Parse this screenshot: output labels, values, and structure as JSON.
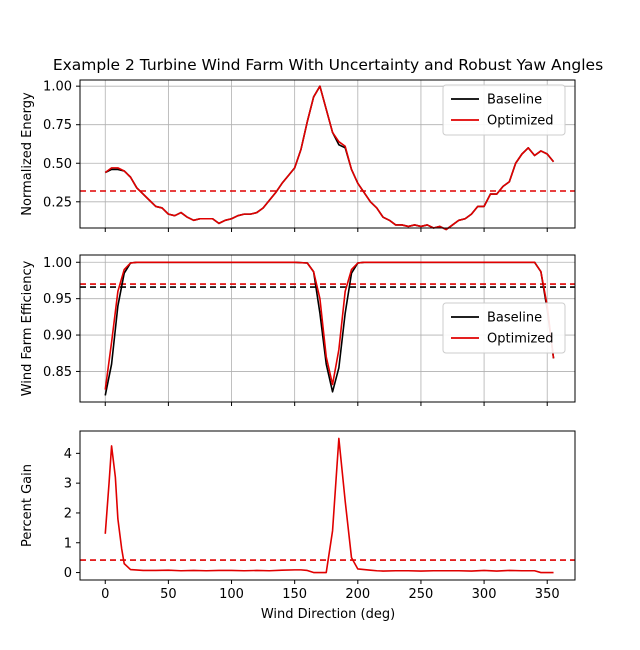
{
  "chart_data": {
    "type": "line",
    "title": "Example 2 Turbine Wind Farm With Uncertainty and Robust Yaw Angles",
    "xlabel": "Wind Direction (deg)",
    "xlim": [
      -20,
      372
    ],
    "xticks": [
      "0",
      "50",
      "100",
      "150",
      "200",
      "250",
      "300",
      "350"
    ],
    "colors": {
      "baseline": "#000000",
      "optimized": "#e00000",
      "grid": "#b0b0b0"
    },
    "panels": [
      {
        "ylabel": "Normalized Energy",
        "ylim": [
          0.08,
          1.04
        ],
        "yticks": [
          "0.25",
          "0.50",
          "0.75",
          "1.00"
        ],
        "ytick_values": [
          0.25,
          0.5,
          0.75,
          1.0
        ],
        "grid": true,
        "legend": "top-right",
        "hlines": [
          {
            "series": "Optimized",
            "y": 0.32,
            "style": "dashed"
          }
        ],
        "series": [
          {
            "name": "Baseline",
            "x": [
              0,
              5,
              10,
              15,
              20,
              25,
              30,
              35,
              40,
              45,
              50,
              55,
              60,
              65,
              70,
              75,
              80,
              85,
              90,
              95,
              100,
              105,
              110,
              115,
              120,
              125,
              130,
              135,
              140,
              145,
              150,
              155,
              160,
              165,
              170,
              175,
              180,
              185,
              190,
              195,
              200,
              205,
              210,
              215,
              220,
              225,
              230,
              235,
              240,
              245,
              250,
              255,
              260,
              265,
              270,
              275,
              280,
              285,
              290,
              295,
              300,
              305,
              310,
              315,
              320,
              325,
              330,
              335,
              340,
              345,
              350,
              355
            ],
            "y": [
              0.44,
              0.46,
              0.46,
              0.45,
              0.41,
              0.34,
              0.3,
              0.26,
              0.22,
              0.21,
              0.17,
              0.16,
              0.18,
              0.15,
              0.13,
              0.14,
              0.14,
              0.14,
              0.11,
              0.13,
              0.14,
              0.16,
              0.17,
              0.17,
              0.18,
              0.21,
              0.26,
              0.31,
              0.37,
              0.42,
              0.47,
              0.59,
              0.77,
              0.93,
              1.0,
              0.85,
              0.7,
              0.62,
              0.6,
              0.46,
              0.37,
              0.31,
              0.25,
              0.21,
              0.15,
              0.13,
              0.1,
              0.1,
              0.09,
              0.1,
              0.09,
              0.1,
              0.08,
              0.09,
              0.07,
              0.1,
              0.13,
              0.14,
              0.17,
              0.22,
              0.22,
              0.3,
              0.3,
              0.35,
              0.38,
              0.5,
              0.56,
              0.6,
              0.55,
              0.58,
              0.56,
              0.51
            ]
          },
          {
            "name": "Optimized",
            "x": [
              0,
              5,
              10,
              15,
              20,
              25,
              30,
              35,
              40,
              45,
              50,
              55,
              60,
              65,
              70,
              75,
              80,
              85,
              90,
              95,
              100,
              105,
              110,
              115,
              120,
              125,
              130,
              135,
              140,
              145,
              150,
              155,
              160,
              165,
              170,
              175,
              180,
              185,
              190,
              195,
              200,
              205,
              210,
              215,
              220,
              225,
              230,
              235,
              240,
              245,
              250,
              255,
              260,
              265,
              270,
              275,
              280,
              285,
              290,
              295,
              300,
              305,
              310,
              315,
              320,
              325,
              330,
              335,
              340,
              345,
              350,
              355
            ],
            "y": [
              0.44,
              0.47,
              0.47,
              0.45,
              0.41,
              0.34,
              0.3,
              0.26,
              0.22,
              0.21,
              0.17,
              0.16,
              0.18,
              0.15,
              0.13,
              0.14,
              0.14,
              0.14,
              0.11,
              0.13,
              0.14,
              0.16,
              0.17,
              0.17,
              0.18,
              0.21,
              0.26,
              0.31,
              0.37,
              0.42,
              0.47,
              0.59,
              0.77,
              0.93,
              1.0,
              0.85,
              0.7,
              0.64,
              0.61,
              0.46,
              0.37,
              0.31,
              0.25,
              0.21,
              0.15,
              0.13,
              0.1,
              0.1,
              0.09,
              0.1,
              0.09,
              0.1,
              0.08,
              0.09,
              0.07,
              0.1,
              0.13,
              0.14,
              0.17,
              0.22,
              0.22,
              0.3,
              0.3,
              0.35,
              0.38,
              0.5,
              0.56,
              0.6,
              0.55,
              0.58,
              0.56,
              0.51
            ]
          }
        ]
      },
      {
        "ylabel": "Wind Farm Efficiency",
        "ylim": [
          0.808,
          1.01
        ],
        "yticks": [
          "0.85",
          "0.90",
          "0.95",
          "1.00"
        ],
        "ytick_values": [
          0.85,
          0.9,
          0.95,
          1.0
        ],
        "grid": true,
        "legend": "center-right",
        "hlines": [
          {
            "series": "Baseline",
            "y": 0.966,
            "style": "dashed"
          },
          {
            "series": "Optimized",
            "y": 0.97,
            "style": "dashed"
          }
        ],
        "series": [
          {
            "name": "Baseline",
            "x": [
              0,
              5,
              10,
              15,
              20,
              25,
              50,
              100,
              150,
              160,
              165,
              170,
              175,
              180,
              185,
              190,
              195,
              200,
              205,
              250,
              300,
              340,
              345,
              350,
              355
            ],
            "y": [
              0.817,
              0.86,
              0.94,
              0.985,
              0.999,
              1.0,
              1.0,
              1.0,
              1.0,
              0.999,
              0.987,
              0.93,
              0.86,
              0.822,
              0.855,
              0.93,
              0.985,
              0.999,
              1.0,
              1.0,
              1.0,
              1.0,
              0.987,
              0.935,
              0.868
            ]
          },
          {
            "name": "Optimized",
            "x": [
              0,
              5,
              10,
              15,
              20,
              25,
              50,
              100,
              150,
              160,
              165,
              170,
              175,
              180,
              185,
              190,
              195,
              200,
              205,
              250,
              300,
              340,
              345,
              350,
              355
            ],
            "y": [
              0.825,
              0.89,
              0.96,
              0.99,
              0.999,
              1.0,
              1.0,
              1.0,
              1.0,
              0.999,
              0.987,
              0.95,
              0.87,
              0.832,
              0.88,
              0.96,
              0.99,
              0.999,
              1.0,
              1.0,
              1.0,
              1.0,
              0.987,
              0.94,
              0.868
            ]
          }
        ]
      },
      {
        "ylabel": "Percent Gain",
        "ylim": [
          -0.25,
          4.75
        ],
        "yticks": [
          "0",
          "1",
          "2",
          "3",
          "4"
        ],
        "ytick_values": [
          0,
          1,
          2,
          3,
          4
        ],
        "grid": false,
        "hlines": [
          {
            "series": "Optimized",
            "y": 0.42,
            "style": "dashed"
          }
        ],
        "series": [
          {
            "name": "Optimized",
            "x": [
              0,
              3,
              5,
              8,
              10,
              13,
              15,
              20,
              30,
              40,
              50,
              60,
              70,
              80,
              90,
              100,
              110,
              120,
              130,
              140,
              150,
              155,
              160,
              165,
              170,
              175,
              180,
              185,
              190,
              195,
              200,
              205,
              210,
              215,
              220,
              230,
              240,
              250,
              260,
              270,
              280,
              290,
              300,
              310,
              320,
              330,
              340,
              345,
              350,
              355
            ],
            "y": [
              1.3,
              3.0,
              4.25,
              3.2,
              1.8,
              0.8,
              0.3,
              0.1,
              0.07,
              0.07,
              0.08,
              0.06,
              0.07,
              0.06,
              0.07,
              0.07,
              0.06,
              0.07,
              0.06,
              0.08,
              0.09,
              0.09,
              0.07,
              0.0,
              0.0,
              0.0,
              1.4,
              4.5,
              2.4,
              0.5,
              0.12,
              0.1,
              0.08,
              0.06,
              0.05,
              0.06,
              0.06,
              0.05,
              0.06,
              0.06,
              0.06,
              0.05,
              0.07,
              0.05,
              0.07,
              0.06,
              0.06,
              0.0,
              0.0,
              0.0
            ]
          }
        ]
      }
    ]
  }
}
